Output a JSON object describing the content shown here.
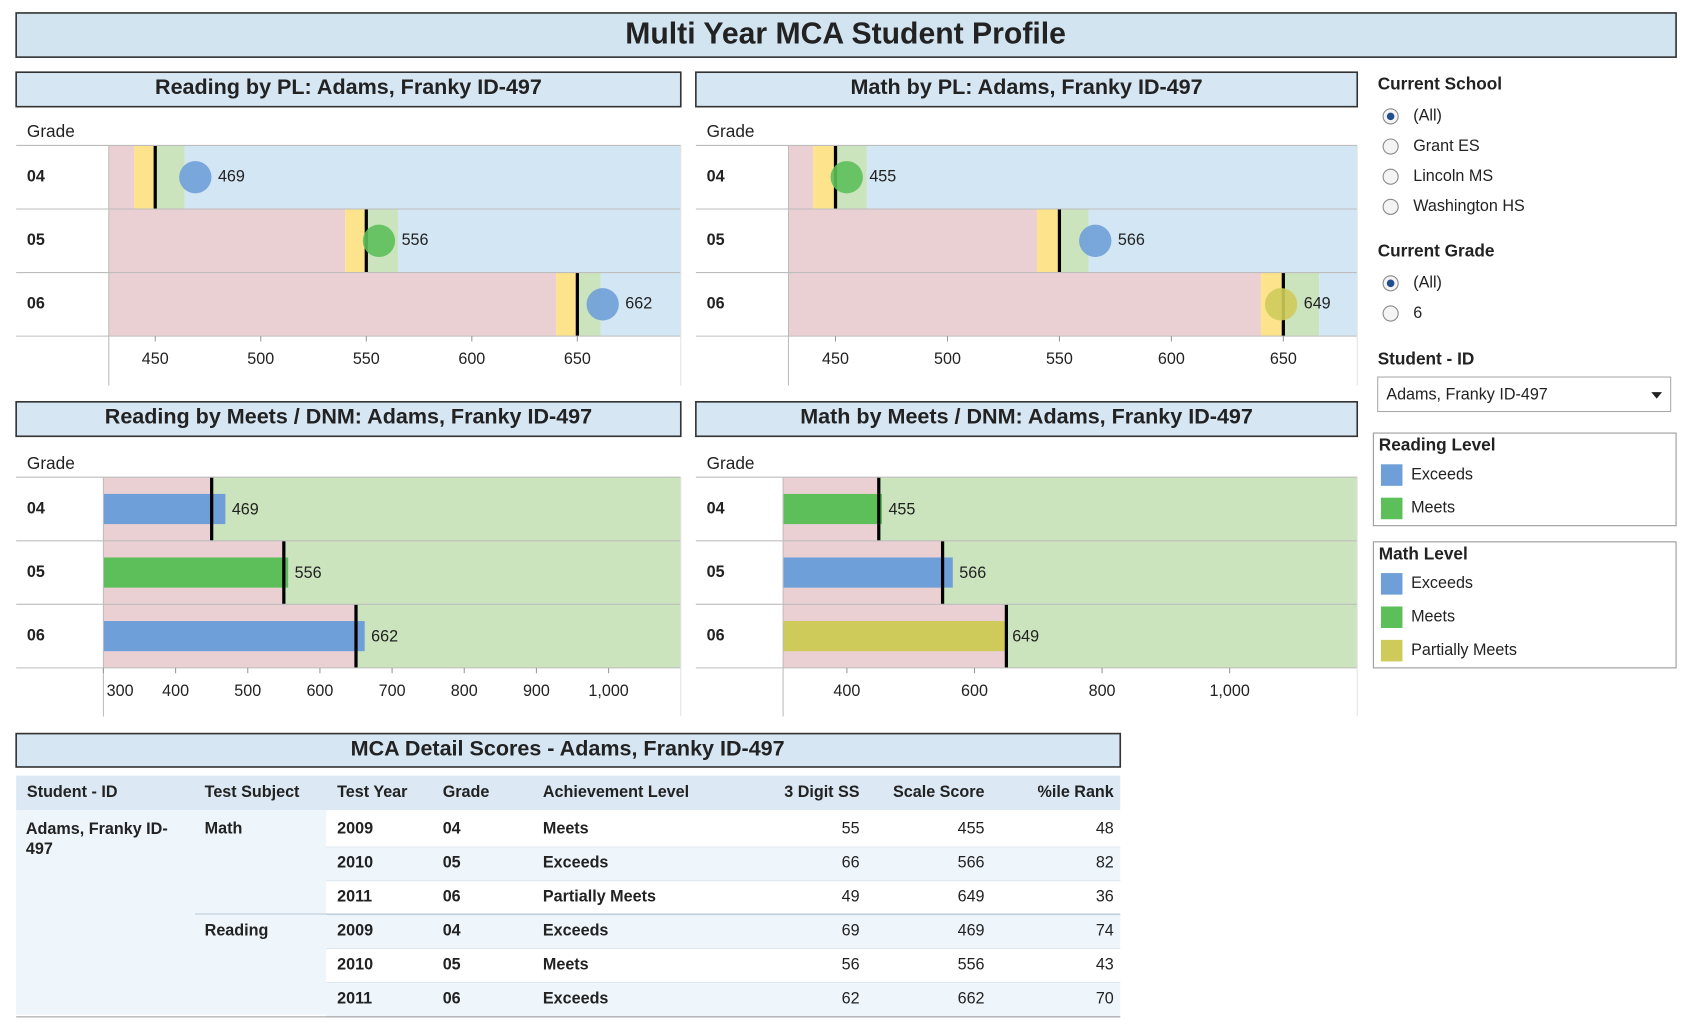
{
  "title": "Multi Year MCA Student Profile",
  "chart_data": [
    {
      "type": "bullet",
      "title": "Reading by PL: Adams, Franky ID-497",
      "y_label": "Grade",
      "categories": [
        "04",
        "05",
        "06"
      ],
      "values": [
        469,
        556,
        662
      ],
      "value_colors": [
        "#6f9fd8",
        "#5cbf5a",
        "#6f9fd8"
      ],
      "targets": [
        450,
        550,
        650
      ],
      "band_edges": [
        [
          440,
          450,
          464
        ],
        [
          540,
          550,
          565
        ],
        [
          640,
          650,
          661
        ]
      ],
      "band_colors": [
        "#ebd0d3",
        "#fce38c",
        "#cbe4bd",
        "#d3e6f3"
      ],
      "xlim": [
        428,
        699
      ],
      "xticks": [
        450,
        500,
        550,
        600,
        650
      ]
    },
    {
      "type": "bullet",
      "title": "Math by PL: Adams, Franky ID-497",
      "y_label": "Grade",
      "categories": [
        "04",
        "05",
        "06"
      ],
      "values": [
        455,
        566,
        649
      ],
      "value_colors": [
        "#5cbf5a",
        "#6f9fd8",
        "#cfcb5b"
      ],
      "targets": [
        450,
        550,
        650
      ],
      "band_edges": [
        [
          440,
          450,
          464
        ],
        [
          540,
          550,
          563
        ],
        [
          640,
          650,
          666
        ]
      ],
      "band_colors": [
        "#ebd0d3",
        "#fce38c",
        "#cbe4bd",
        "#d3e6f3"
      ],
      "xlim": [
        429,
        683
      ],
      "xticks": [
        450,
        500,
        550,
        600,
        650
      ]
    },
    {
      "type": "meets",
      "title": "Reading by Meets / DNM: Adams, Franky ID-497",
      "y_label": "Grade",
      "categories": [
        "04",
        "05",
        "06"
      ],
      "values": [
        469,
        556,
        662
      ],
      "value_colors": [
        "#6f9fd8",
        "#5cbf5a",
        "#6f9fd8"
      ],
      "targets": [
        450,
        550,
        650
      ],
      "band_colors": [
        "#ebd0d3",
        "#cbe4bd"
      ],
      "xlim": [
        300,
        1100
      ],
      "xticks": [
        300,
        400,
        500,
        600,
        700,
        800,
        900,
        {
          "value": 1000,
          "label": "1,000"
        }
      ]
    },
    {
      "type": "meets",
      "title": "Math by Meets / DNM: Adams, Franky ID-497",
      "y_label": "Grade",
      "categories": [
        "04",
        "05",
        "06"
      ],
      "values": [
        455,
        566,
        649
      ],
      "value_colors": [
        "#5cbf5a",
        "#6f9fd8",
        "#cfcb5b"
      ],
      "targets": [
        450,
        550,
        650
      ],
      "band_colors": [
        "#ebd0d3",
        "#cbe4bd"
      ],
      "xlim": [
        300,
        1200
      ],
      "xticks": [
        400,
        600,
        800,
        {
          "value": 1000,
          "label": "1,000"
        }
      ]
    }
  ],
  "filters": {
    "school": {
      "title": "Current School",
      "options": [
        "(All)",
        "Grant ES",
        "Lincoln MS",
        "Washington HS"
      ],
      "selected": 0
    },
    "grade": {
      "title": "Current Grade",
      "options": [
        "(All)",
        "6"
      ],
      "selected": 0
    },
    "student": {
      "title": "Student - ID",
      "value": "Adams, Franky ID-497"
    }
  },
  "legends": [
    {
      "title": "Reading Level",
      "items": [
        {
          "name": "Exceeds",
          "color": "#6f9fd8"
        },
        {
          "name": "Meets",
          "color": "#5cbf5a"
        }
      ]
    },
    {
      "title": "Math Level",
      "items": [
        {
          "name": "Exceeds",
          "color": "#6f9fd8"
        },
        {
          "name": "Meets",
          "color": "#5cbf5a"
        },
        {
          "name": "Partially Meets",
          "color": "#cfcb5b"
        }
      ]
    }
  ],
  "table": {
    "title": "MCA Detail Scores - Adams, Franky ID-497",
    "columns": [
      "Student - ID",
      "Test Subject",
      "Test Year",
      "Grade",
      "Achievement Level",
      "3 Digit SS",
      "Scale Score",
      "%ile Rank"
    ],
    "student": "Adams, Franky ID-497",
    "groups": [
      {
        "subject": "Math",
        "rows": [
          [
            "2009",
            "04",
            "Meets",
            55,
            455,
            48
          ],
          [
            "2010",
            "05",
            "Exceeds",
            66,
            566,
            82
          ],
          [
            "2011",
            "06",
            "Partially Meets",
            49,
            649,
            36
          ]
        ]
      },
      {
        "subject": "Reading",
        "rows": [
          [
            "2009",
            "04",
            "Exceeds",
            69,
            469,
            74
          ],
          [
            "2010",
            "05",
            "Meets",
            56,
            556,
            43
          ],
          [
            "2011",
            "06",
            "Exceeds",
            62,
            662,
            70
          ]
        ]
      }
    ]
  }
}
